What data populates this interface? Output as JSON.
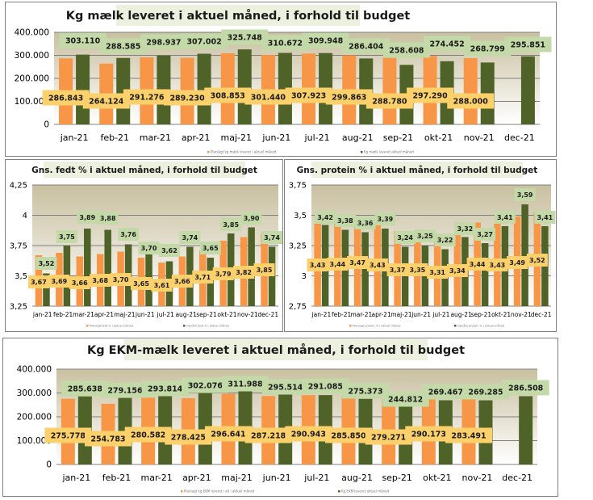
{
  "colors": {
    "budget": "#f79646",
    "actual": "#4f6228",
    "budget_label_bg": "#fcd06a",
    "actual_label_bg": "#c4d9a8",
    "title_bg": "#ebf1de",
    "plot_bg_top": "#c9c0a0",
    "plot_bg_bottom": "#ffffff",
    "gridline": "#7f7f7f"
  },
  "chart_data": [
    {
      "id": "kg-maelk",
      "type": "bar",
      "title": "Kg mælk leveret i aktuel måned, i forhold til budget",
      "xlabel": "",
      "ylabel": "",
      "ylim": [
        0,
        400000
      ],
      "yticks": [
        0,
        100000,
        200000,
        300000,
        400000
      ],
      "ytick_labels": [
        "0",
        "100.000",
        "200.000",
        "300.000",
        "400.000"
      ],
      "grid": true,
      "legend_position": "bottom",
      "categories": [
        "jan-21",
        "feb-21",
        "mar-21",
        "apr-21",
        "maj-21",
        "jun-21",
        "jul-21",
        "aug-21",
        "sep-21",
        "okt-21",
        "nov-21",
        "dec-21"
      ],
      "series": [
        {
          "name": "Planlagt kg mælk leveret i aktuel måned",
          "role": "budget",
          "values": [
            286843,
            264124,
            291276,
            289230,
            308853,
            301440,
            307923,
            299863,
            288780,
            297290,
            288000,
            null
          ],
          "labels": [
            "286.843",
            "264.124",
            "291.276",
            "289.230",
            "308.853",
            "301.440",
            "307.923",
            "299.863",
            "288.780",
            "297.290",
            "288.000",
            ""
          ]
        },
        {
          "name": "Kg mælk leveret aktuel måned",
          "role": "actual",
          "values": [
            303110,
            288585,
            298937,
            307002,
            325748,
            310672,
            309948,
            286404,
            258608,
            274452,
            268799,
            295851
          ],
          "labels": [
            "303.110",
            "288.585",
            "298.937",
            "307.002",
            "325.748",
            "310.672",
            "309.948",
            "286.404",
            "258.608",
            "274.452",
            "268.799",
            "295.851"
          ]
        }
      ]
    },
    {
      "id": "fedt",
      "type": "bar",
      "title": "Gns. fedt % i aktuel måned, i forhold til budget",
      "xlabel": "",
      "ylabel": "",
      "ylim": [
        3.25,
        4.25
      ],
      "yticks": [
        3.25,
        3.5,
        3.75,
        4,
        4.25
      ],
      "ytick_labels": [
        "3,25",
        "3,5",
        "3,75",
        "4",
        "4,25"
      ],
      "grid": true,
      "legend_position": "bottom",
      "categories": [
        "jan-21",
        "feb-21",
        "mar-21",
        "apr-21",
        "maj-21",
        "jun-21",
        "jul-21",
        "aug-21",
        "sep-21",
        "okt-21",
        "nov-21",
        "dec-21"
      ],
      "series": [
        {
          "name": "Planlagt fedt % i aktuel måned",
          "role": "budget",
          "values": [
            3.67,
            3.69,
            3.66,
            3.68,
            3.7,
            3.65,
            3.61,
            3.66,
            3.71,
            3.79,
            3.82,
            3.85
          ],
          "labels": [
            "3,67",
            "3,69",
            "3,66",
            "3,68",
            "3,70",
            "3,65",
            "3,61",
            "3,66",
            "3,71",
            "3,79",
            "3,82",
            "3,85"
          ]
        },
        {
          "name": "Opnået fedt % i aktuel måned",
          "role": "actual",
          "values": [
            3.52,
            3.75,
            3.89,
            3.88,
            3.76,
            3.7,
            3.62,
            3.74,
            3.65,
            3.85,
            3.9,
            3.74
          ],
          "labels": [
            "3,52",
            "3,75",
            "3,89",
            "3,88",
            "3,76",
            "3,70",
            "3,62",
            "3,74",
            "3,65",
            "3,85",
            "3,90",
            "3,74"
          ]
        }
      ]
    },
    {
      "id": "protein",
      "type": "bar",
      "title": "Gns. protein % i aktuel måned, i forhold til budget",
      "xlabel": "",
      "ylabel": "",
      "ylim": [
        2.75,
        3.75
      ],
      "yticks": [
        2.75,
        3,
        3.25,
        3.5,
        3.75
      ],
      "ytick_labels": [
        "2,75",
        "3",
        "3,25",
        "3,5",
        "3,75"
      ],
      "grid": true,
      "legend_position": "bottom",
      "categories": [
        "jan-21",
        "feb-21",
        "mar-21",
        "apr-21",
        "maj-21",
        "jun-21",
        "jul-21",
        "aug-21",
        "sep-21",
        "okt-21",
        "nov-21",
        "dec-21"
      ],
      "series": [
        {
          "name": "Planlagt protein % i aktuel måned",
          "role": "budget",
          "values": [
            3.43,
            3.44,
            3.47,
            3.43,
            3.37,
            3.35,
            3.31,
            3.34,
            3.44,
            3.43,
            3.49,
            3.52
          ],
          "labels": [
            "3,43",
            "3,44",
            "3,47",
            "3,43",
            "3,37",
            "3,35",
            "3,31",
            "3,34",
            "3,44",
            "3,43",
            "3,49",
            "3,52"
          ]
        },
        {
          "name": "Opnået protein % i aktuel måned",
          "role": "actual",
          "values": [
            3.42,
            3.38,
            3.36,
            3.39,
            3.24,
            3.25,
            3.22,
            3.32,
            3.27,
            3.41,
            3.59,
            3.41
          ],
          "labels": [
            "3,42",
            "3,38",
            "3,36",
            "3,39",
            "3,24",
            "3,25",
            "3,22",
            "3,32",
            "3,27",
            "3,41",
            "3,59",
            "3,41"
          ]
        }
      ]
    },
    {
      "id": "ekm",
      "type": "bar",
      "title": "Kg EKM-mælk leveret i aktuel måned, i forhold til budget",
      "xlabel": "",
      "ylabel": "",
      "ylim": [
        0,
        400000
      ],
      "yticks": [
        0,
        100000,
        200000,
        300000,
        400000
      ],
      "ytick_labels": [
        "0",
        "100.000",
        "200.000",
        "300.000",
        "400.000"
      ],
      "grid": true,
      "legend_position": "bottom",
      "categories": [
        "jan-21",
        "feb-21",
        "mar-21",
        "apr-21",
        "maj-21",
        "jun-21",
        "jul-21",
        "aug-21",
        "sep-21",
        "okt-21",
        "nov-21",
        "dec-21"
      ],
      "series": [
        {
          "name": "Planlagt kg EKM leveret i alt i aktuel måned",
          "role": "budget",
          "values": [
            275778,
            254783,
            280582,
            278425,
            296641,
            287218,
            290943,
            285850,
            279271,
            290173,
            283491,
            null
          ],
          "labels": [
            "275.778",
            "254.783",
            "280.582",
            "278.425",
            "296.641",
            "287.218",
            "290.943",
            "285.850",
            "279.271",
            "290.173",
            "283.491",
            ""
          ]
        },
        {
          "name": "Kg EKM leveret aktuel måned",
          "role": "actual",
          "values": [
            285638,
            279156,
            293814,
            302076,
            311988,
            295514,
            291085,
            275373,
            244812,
            269467,
            269285,
            286508
          ],
          "labels": [
            "285.638",
            "279.156",
            "293.814",
            "302.076",
            "311.988",
            "295.514",
            "291.085",
            "275.373",
            "244.812",
            "269.467",
            "269.285",
            "286.508"
          ]
        }
      ]
    }
  ]
}
